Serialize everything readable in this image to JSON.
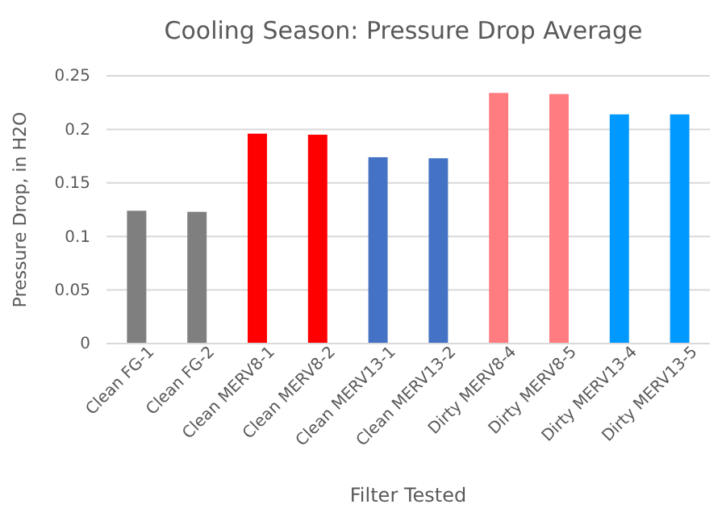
{
  "chart_data": {
    "type": "bar",
    "title": "Cooling Season: Pressure Drop Average",
    "xlabel": "Filter Tested",
    "ylabel": "Pressure Drop, in H2O",
    "categories": [
      "Clean FG-1",
      "Clean FG-2",
      "Clean MERV8-1",
      "Clean MERV8-2",
      "Clean MERV13-1",
      "Clean MERV13-2",
      "Dirty MERV8-4",
      "Dirty MERV8-5",
      "Dirty MERV13-4",
      "Dirty MERV13-5"
    ],
    "values": [
      0.124,
      0.123,
      0.196,
      0.195,
      0.174,
      0.173,
      0.234,
      0.233,
      0.214,
      0.214
    ],
    "colors": [
      "#7f7f7f",
      "#7f7f7f",
      "#ff0000",
      "#ff0000",
      "#4472c4",
      "#4472c4",
      "#ff7c80",
      "#ff7c80",
      "#0099ff",
      "#0099ff"
    ],
    "ylim": [
      0,
      0.25
    ],
    "yticks": [
      0,
      0.05,
      0.1,
      0.15,
      0.2,
      0.25
    ],
    "grid": "y"
  }
}
